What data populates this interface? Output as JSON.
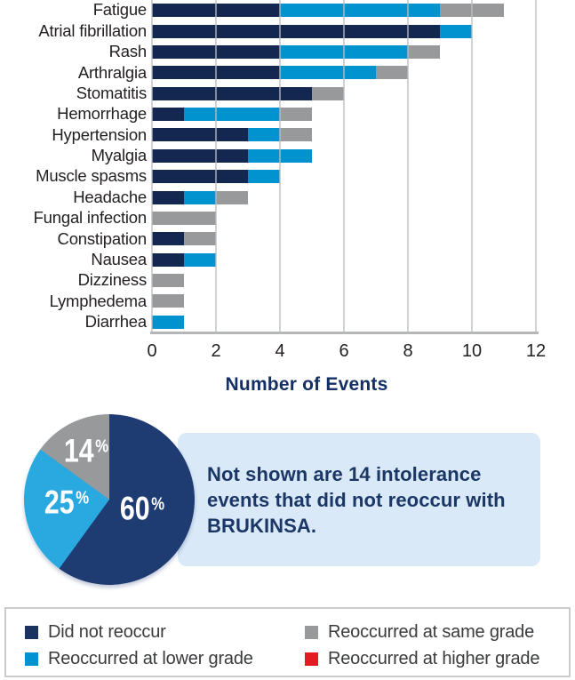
{
  "colors": {
    "navy": "#132750",
    "blue": "#0093d0",
    "gray": "#98999b",
    "red": "#e31b23",
    "pie_navy": "#1e3b72",
    "pie_blue": "#2aa9e1",
    "pie_gray": "#97999b",
    "legend_navy": "#1c3361",
    "axis_label": "#231f20",
    "axis_title": "#142f66",
    "callout_bg": "#d9e9f8",
    "callout_text": "#1b3765",
    "legend_text": "#3a3b3d",
    "legend_border": "#cccccc",
    "gridline": "#b9bcc0",
    "axis_line": "#b4b6b8"
  },
  "chart_data": [
    {
      "type": "bar",
      "orientation": "horizontal",
      "stacked": true,
      "xlabel": "Number of Events",
      "x_ticks": [
        0,
        2,
        4,
        6,
        8,
        10,
        12
      ],
      "xlim": [
        0,
        12
      ],
      "grid": true,
      "categories": [
        "Fatigue",
        "Atrial fibrillation",
        "Rash",
        "Arthralgia",
        "Stomatitis",
        "Hemorrhage",
        "Hypertension",
        "Myalgia",
        "Muscle spasms",
        "Headache",
        "Fungal infection",
        "Constipation",
        "Nausea",
        "Dizziness",
        "Lymphedema",
        "Diarrhea"
      ],
      "series": [
        {
          "name": "Did not reoccur",
          "key": "did-not-reoccur",
          "color_key": "navy",
          "values": [
            4,
            9,
            4,
            4,
            5,
            1,
            3,
            3,
            3,
            1,
            0,
            1,
            1,
            0,
            0,
            0
          ]
        },
        {
          "name": "Reoccurred at lower grade",
          "key": "lower-grade",
          "color_key": "blue",
          "values": [
            5,
            1,
            4,
            3,
            0,
            3,
            1,
            2,
            1,
            1,
            0,
            0,
            1,
            0,
            0,
            1
          ]
        },
        {
          "name": "Reoccurred at same grade",
          "key": "same-grade",
          "color_key": "gray",
          "values": [
            2,
            0,
            1,
            1,
            1,
            1,
            1,
            0,
            0,
            1,
            2,
            1,
            0,
            1,
            1,
            0
          ]
        },
        {
          "name": "Reoccurred at higher grade",
          "key": "higher-grade",
          "color_key": "red",
          "values": [
            0,
            0,
            0,
            0,
            0,
            0,
            0,
            0,
            0,
            0,
            0,
            0,
            0,
            0,
            0,
            0
          ]
        }
      ]
    },
    {
      "type": "pie",
      "start_angle_deg": 0,
      "direction": "clockwise",
      "slices": [
        {
          "label": "Did not reoccur",
          "pct": 60,
          "value_label": "60",
          "sym": "%",
          "color_key": "pie_navy"
        },
        {
          "label": "Reoccurred at lower grade",
          "pct": 25,
          "value_label": "25",
          "sym": "%",
          "color_key": "pie_blue"
        },
        {
          "label": "Reoccurred at same grade",
          "pct": 14,
          "value_label": "14",
          "sym": "%",
          "color_key": "pie_gray"
        }
      ]
    }
  ],
  "callout": {
    "text": "Not shown are 14 intolerance events that did not reoccur with BRUKINSA."
  },
  "legend": {
    "items": [
      {
        "label": "Did not reoccur",
        "color_key": "legend_navy"
      },
      {
        "label": "Reoccurred at same grade",
        "color_key": "gray"
      },
      {
        "label": "Reoccurred at lower grade",
        "color_key": "blue"
      },
      {
        "label": "Reoccurred at higher grade",
        "color_key": "red"
      }
    ]
  }
}
